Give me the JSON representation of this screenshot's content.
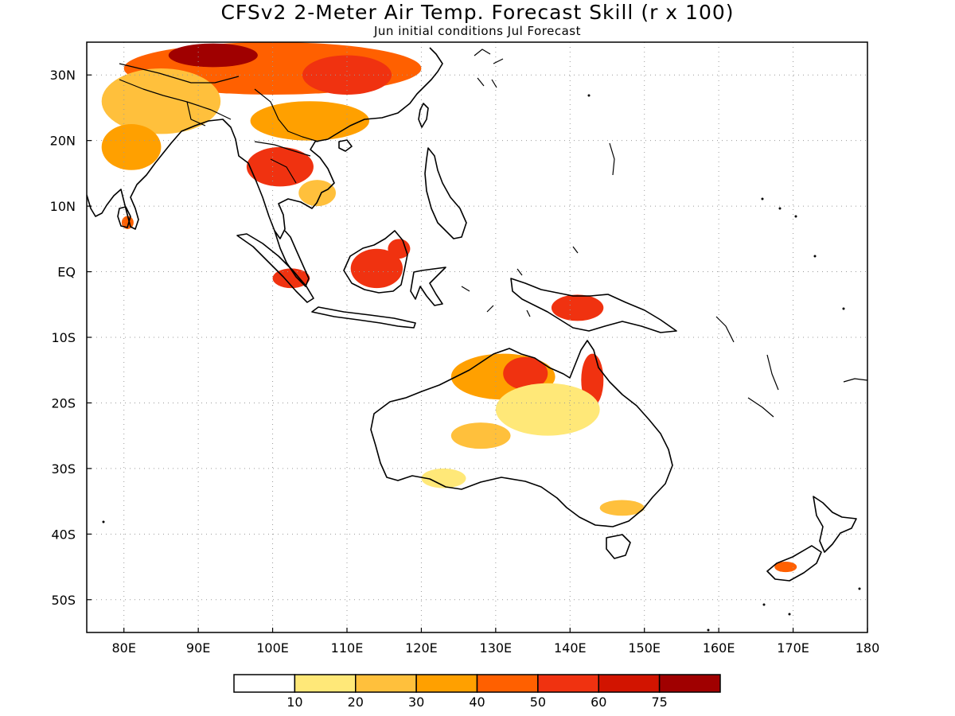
{
  "map": {
    "title": "CFSv2 2-Meter Air Temp. Forecast Skill (r x 100)",
    "subtitle": "Jun initial conditions  Jul Forecast",
    "lon_range": [
      75,
      180
    ],
    "lat_range": [
      -55,
      35
    ],
    "lon_ticks": [
      {
        "value": 80,
        "label": "80E"
      },
      {
        "value": 90,
        "label": "90E"
      },
      {
        "value": 100,
        "label": "100E"
      },
      {
        "value": 110,
        "label": "110E"
      },
      {
        "value": 120,
        "label": "120E"
      },
      {
        "value": 130,
        "label": "130E"
      },
      {
        "value": 140,
        "label": "140E"
      },
      {
        "value": 150,
        "label": "150E"
      },
      {
        "value": 160,
        "label": "160E"
      },
      {
        "value": 170,
        "label": "170E"
      },
      {
        "value": 180,
        "label": "180"
      }
    ],
    "lat_ticks": [
      {
        "value": 30,
        "label": "30N"
      },
      {
        "value": 20,
        "label": "20N"
      },
      {
        "value": 10,
        "label": "10N"
      },
      {
        "value": 0,
        "label": "EQ"
      },
      {
        "value": -10,
        "label": "10S"
      },
      {
        "value": -20,
        "label": "20S"
      },
      {
        "value": -30,
        "label": "30S"
      },
      {
        "value": -40,
        "label": "40S"
      },
      {
        "value": -50,
        "label": "50S"
      }
    ],
    "grid": true,
    "colorbar": {
      "placement": "bottom",
      "bins": [
        {
          "color": "#ffffff"
        },
        {
          "color": "#ffe878"
        },
        {
          "color": "#ffc03c"
        },
        {
          "color": "#ffa000"
        },
        {
          "color": "#ff6000"
        },
        {
          "color": "#f03210"
        },
        {
          "color": "#d21400"
        },
        {
          "color": "#a00000"
        }
      ],
      "labels": [
        "10",
        "20",
        "30",
        "40",
        "50",
        "60",
        "75"
      ]
    },
    "skill_regions": [
      {
        "lon": 100,
        "lat": 31,
        "rx": 20,
        "ry": 4,
        "level": 4
      },
      {
        "lon": 92,
        "lat": 33,
        "rx": 6,
        "ry": 1.8,
        "level": 7
      },
      {
        "lon": 110,
        "lat": 30,
        "rx": 6,
        "ry": 3,
        "level": 5
      },
      {
        "lon": 85,
        "lat": 26,
        "rx": 8,
        "ry": 5,
        "level": 2
      },
      {
        "lon": 81,
        "lat": 19,
        "rx": 4,
        "ry": 3.5,
        "level": 3
      },
      {
        "lon": 105,
        "lat": 23,
        "rx": 8,
        "ry": 3,
        "level": 3
      },
      {
        "lon": 101,
        "lat": 16,
        "rx": 4.5,
        "ry": 3,
        "level": 5
      },
      {
        "lon": 106,
        "lat": 12,
        "rx": 2.5,
        "ry": 2,
        "level": 2
      },
      {
        "lon": 80.5,
        "lat": 7.5,
        "rx": 0.8,
        "ry": 1,
        "level": 4
      },
      {
        "lon": 114,
        "lat": 0.5,
        "rx": 3.5,
        "ry": 3,
        "level": 5
      },
      {
        "lon": 117,
        "lat": 3.5,
        "rx": 1.5,
        "ry": 1.5,
        "level": 5
      },
      {
        "lon": 102.5,
        "lat": -1,
        "rx": 2.5,
        "ry": 1.5,
        "level": 5
      },
      {
        "lon": 141,
        "lat": -5.5,
        "rx": 3.5,
        "ry": 2,
        "level": 5
      },
      {
        "lon": 131,
        "lat": -16,
        "rx": 7,
        "ry": 3.5,
        "level": 3
      },
      {
        "lon": 134,
        "lat": -15.5,
        "rx": 3,
        "ry": 2.5,
        "level": 5
      },
      {
        "lon": 143,
        "lat": -16.5,
        "rx": 1.5,
        "ry": 4,
        "level": 5
      },
      {
        "lon": 137,
        "lat": -21,
        "rx": 7,
        "ry": 4,
        "level": 1
      },
      {
        "lon": 128,
        "lat": -25,
        "rx": 4,
        "ry": 2,
        "level": 2
      },
      {
        "lon": 123,
        "lat": -31.5,
        "rx": 3,
        "ry": 1.5,
        "level": 1
      },
      {
        "lon": 147,
        "lat": -36,
        "rx": 3,
        "ry": 1.2,
        "level": 2
      },
      {
        "lon": 169,
        "lat": -45,
        "rx": 1.5,
        "ry": 0.8,
        "level": 4
      }
    ]
  }
}
